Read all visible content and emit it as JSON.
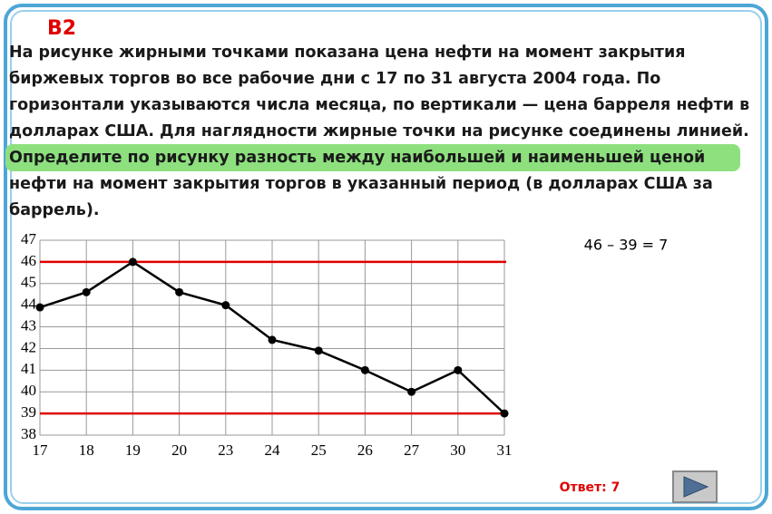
{
  "header": {
    "title": "B2"
  },
  "problem": {
    "lines": [
      "На рисунке жирными точками показана цена нефти на момент закрытия",
      "биржевых торгов во все рабочие дни с 17 по 31 августа 2004 года. По",
      "горизонтали указываются числа месяца, по вертикали — цена барреля нефти в",
      "долларах США. Для наглядности жирные точки на рисунке соединены линией.",
      "Определите по рисунку разность между наибольшей и наименьшей ценой",
      "нефти на момент закрытия торгов в указанный период (в долларах США за",
      "баррель)."
    ],
    "highlighted_line": 4
  },
  "chart_data": {
    "type": "line",
    "categories": [
      "17",
      "18",
      "19",
      "20",
      "23",
      "24",
      "25",
      "26",
      "27",
      "30",
      "31"
    ],
    "series": [
      {
        "color": "#000000",
        "values": [
          43.9,
          44.6,
          46,
          44.6,
          44,
          42.4,
          41.9,
          41,
          40,
          41,
          39
        ]
      }
    ],
    "ylim": [
      38,
      47
    ],
    "yticks": [
      38,
      39,
      40,
      41,
      42,
      43,
      44,
      45,
      46,
      47
    ],
    "grid": true,
    "reference_lines": [
      46,
      39
    ],
    "reference_color": "#e00000",
    "annotation": "46 – 39 = 7"
  },
  "answer": "Ответ: 7"
}
